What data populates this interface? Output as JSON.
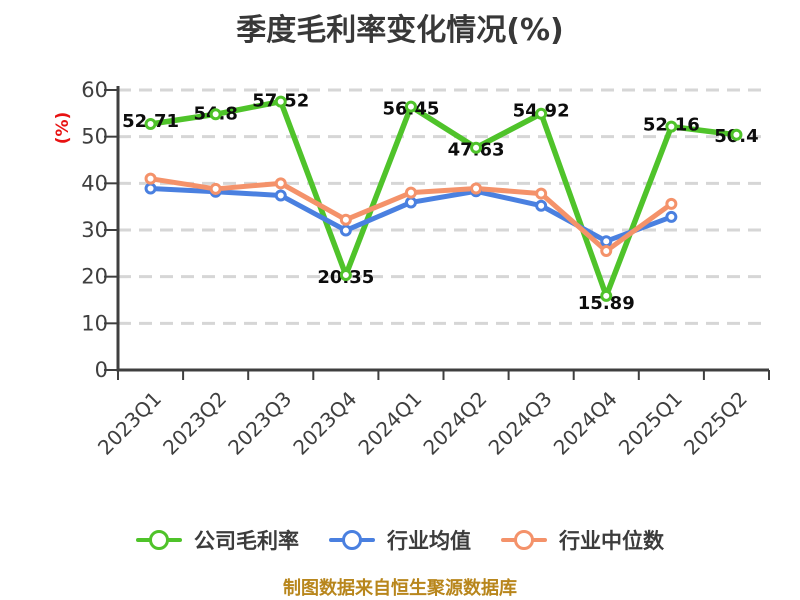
{
  "title": "季度毛利率变化情况(%)",
  "y_axis_unit": "(%)",
  "footer": "制图数据来自恒生聚源数据库",
  "colors": {
    "background": "#ffffff",
    "title_text": "#383838",
    "axis": "#3f3f3f",
    "tick_text": "#3f3f3f",
    "grid": "#d6d6d6",
    "data_label": "#0d0d0d",
    "y_unit": "#e81212",
    "legend_text": "#3c3c3c",
    "footer_text": "#b8861c"
  },
  "chart_data": {
    "type": "line",
    "title": "季度毛利率变化情况(%)",
    "xlabel": "",
    "ylabel": "(%)",
    "categories": [
      "2023Q1",
      "2023Q2",
      "2023Q3",
      "2023Q4",
      "2024Q1",
      "2024Q2",
      "2024Q3",
      "2024Q4",
      "2025Q1",
      "2025Q2"
    ],
    "series": [
      {
        "name": "公司毛利率",
        "color": "#4fc32a",
        "line_width": 5.5,
        "show_labels": true,
        "values": [
          52.71,
          54.8,
          57.52,
          20.35,
          56.45,
          47.63,
          54.92,
          15.89,
          52.16,
          50.4
        ]
      },
      {
        "name": "行业均值",
        "color": "#4a80e0",
        "line_width": 5,
        "show_labels": false,
        "values": [
          38.9,
          38.2,
          37.4,
          29.9,
          35.9,
          38.3,
          35.2,
          27.6,
          32.8,
          null
        ]
      },
      {
        "name": "行业中位数",
        "color": "#f4926a",
        "line_width": 5,
        "show_labels": false,
        "values": [
          41.0,
          38.8,
          40.0,
          32.2,
          38.0,
          38.9,
          37.8,
          25.5,
          35.6,
          null
        ]
      }
    ],
    "ylim": [
      0,
      60
    ],
    "yticks": [
      0,
      10,
      20,
      30,
      40,
      50,
      60
    ],
    "grid": "horizontal-dashed",
    "legend_position": "bottom",
    "x_tick_rotation": 45,
    "markers": "circle-white-filled"
  }
}
